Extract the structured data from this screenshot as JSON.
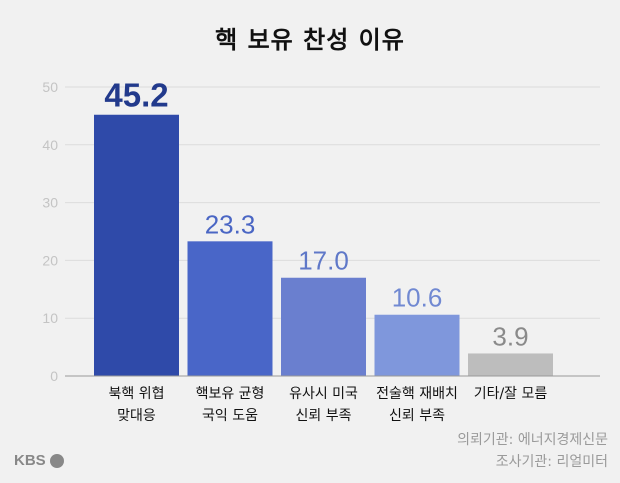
{
  "chart_data": {
    "type": "bar",
    "title": "핵 보유 찬성 이유",
    "categories": [
      [
        "북핵 위협",
        "맞대응"
      ],
      [
        "핵보유 균형",
        "국익 도움"
      ],
      [
        "유사시 미국",
        "신뢰 부족"
      ],
      [
        "전술핵 재배치",
        "신뢰 부족"
      ],
      [
        "기타/잘 모름"
      ]
    ],
    "values": [
      45.2,
      23.3,
      17.0,
      10.6,
      3.9
    ],
    "value_labels": [
      "45.2",
      "23.3",
      "17.0",
      "10.6",
      "3.9"
    ],
    "bar_colors": [
      "#2f4aa9",
      "#4966c8",
      "#6a7fcf",
      "#7f97dc",
      "#bdbdbd"
    ],
    "label_colors": [
      "#223a8c",
      "#4a66c4",
      "#5f78c8",
      "#7189d2",
      "#8a8a8a"
    ],
    "yticks": [
      0,
      10,
      20,
      30,
      40,
      50
    ],
    "ylim": [
      0,
      50
    ],
    "xlabel": "",
    "ylabel": ""
  },
  "source": {
    "line1": "의뢰기관: 에너지경제신문",
    "line2": "조사기관: 리얼미터"
  },
  "logo": {
    "text": "KBS"
  }
}
